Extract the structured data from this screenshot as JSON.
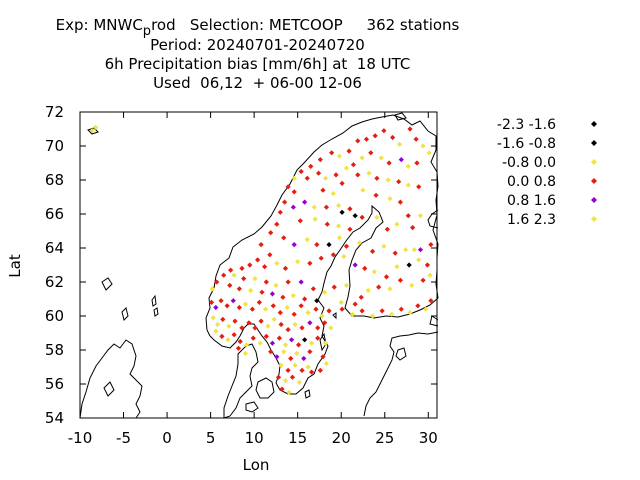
{
  "title": {
    "line1_a": "Exp: MNWC",
    "line1_sub": "p",
    "line1_b": "rod   Selection: METCOOP     362 stations",
    "line2": "Period: 20240701-20240720",
    "line3": "6h Precipitation bias [mm/6h] at  18 UTC",
    "line4": "Used  06,12  + 06-00 12-06"
  },
  "chart_data": {
    "type": "scatter",
    "xlabel": "Lon",
    "ylabel": "Lat",
    "xlim": [
      -10,
      31
    ],
    "ylim": [
      54,
      72
    ],
    "xticks": [
      "-10",
      "-5",
      "0",
      "5",
      "10",
      "15",
      "20",
      "25",
      "30"
    ],
    "yticks": [
      "54",
      "56",
      "58",
      "60",
      "62",
      "64",
      "66",
      "68",
      "70",
      "72"
    ],
    "grid": false,
    "legend_position": "right",
    "classes": [
      {
        "label": "-2.3 -1.6",
        "color": "#000000"
      },
      {
        "label": "-1.6 -0.8",
        "color": "#000000"
      },
      {
        "label": "-0.8 0.0",
        "color": "#f0e442"
      },
      {
        "label": "0.0 0.8",
        "color": "#e51e10"
      },
      {
        "label": "0.8 1.6",
        "color": "#9400d3"
      },
      {
        "label": "1.6 2.3",
        "color": "#f0e442"
      }
    ],
    "points": [
      [
        -8.6,
        70.9,
        5
      ],
      [
        -8.2,
        71.1,
        2
      ],
      [
        21.9,
        70.3,
        3
      ],
      [
        22.9,
        70.4,
        3
      ],
      [
        23.9,
        70.6,
        3
      ],
      [
        24.9,
        70.9,
        3
      ],
      [
        25.9,
        70.5,
        3
      ],
      [
        26.7,
        70.1,
        2
      ],
      [
        27.9,
        71.0,
        3
      ],
      [
        28.6,
        70.4,
        3
      ],
      [
        29.4,
        70.0,
        2
      ],
      [
        30.1,
        69.6,
        2
      ],
      [
        18.9,
        69.6,
        3
      ],
      [
        19.8,
        69.4,
        2
      ],
      [
        20.9,
        69.7,
        3
      ],
      [
        17.6,
        69.2,
        3
      ],
      [
        16.5,
        68.8,
        3
      ],
      [
        15.4,
        68.5,
        3
      ],
      [
        14.6,
        68.1,
        2
      ],
      [
        13.9,
        67.6,
        3
      ],
      [
        16.1,
        68.1,
        3
      ],
      [
        17.4,
        68.4,
        3
      ],
      [
        18.2,
        68.1,
        2
      ],
      [
        19.4,
        68.3,
        3
      ],
      [
        20.6,
        68.7,
        2
      ],
      [
        21.4,
        68.9,
        3
      ],
      [
        22.4,
        69.3,
        2
      ],
      [
        23.4,
        69.6,
        3
      ],
      [
        24.6,
        69.3,
        2
      ],
      [
        25.5,
        69.0,
        3
      ],
      [
        26.9,
        69.2,
        4
      ],
      [
        27.7,
        68.8,
        2
      ],
      [
        28.7,
        69.0,
        3
      ],
      [
        21.9,
        68.3,
        3
      ],
      [
        23.2,
        68.4,
        2
      ],
      [
        24.1,
        68.1,
        3
      ],
      [
        25.4,
        68.0,
        2
      ],
      [
        26.6,
        67.9,
        3
      ],
      [
        27.7,
        67.7,
        2
      ],
      [
        28.9,
        67.6,
        3
      ],
      [
        20.1,
        67.8,
        3
      ],
      [
        19.1,
        67.2,
        2
      ],
      [
        17.9,
        67.4,
        3
      ],
      [
        22.5,
        67.4,
        2
      ],
      [
        24.0,
        67.1,
        3
      ],
      [
        25.6,
        66.9,
        2
      ],
      [
        26.8,
        66.7,
        3
      ],
      [
        14.6,
        67.3,
        3
      ],
      [
        13.5,
        66.7,
        3
      ],
      [
        13.0,
        66.1,
        3
      ],
      [
        14.5,
        66.4,
        4
      ],
      [
        15.8,
        66.7,
        4
      ],
      [
        16.9,
        66.4,
        2
      ],
      [
        18.3,
        66.4,
        3
      ],
      [
        19.7,
        66.5,
        2
      ],
      [
        21.0,
        66.3,
        3
      ],
      [
        20.1,
        66.1,
        1
      ],
      [
        21.6,
        65.9,
        0
      ],
      [
        15.3,
        65.6,
        3
      ],
      [
        17.0,
        65.7,
        2
      ],
      [
        18.4,
        65.4,
        3
      ],
      [
        19.7,
        65.3,
        2
      ],
      [
        21.0,
        65.1,
        3
      ],
      [
        22.4,
        65.8,
        3
      ],
      [
        24.1,
        65.8,
        2
      ],
      [
        25.3,
        65.1,
        3
      ],
      [
        26.4,
        65.4,
        2
      ],
      [
        27.7,
        65.9,
        3
      ],
      [
        29.1,
        65.9,
        2
      ],
      [
        28.2,
        65.2,
        3
      ],
      [
        12.6,
        65.4,
        3
      ],
      [
        11.9,
        64.9,
        3
      ],
      [
        13.4,
        64.6,
        3
      ],
      [
        14.6,
        64.2,
        4
      ],
      [
        16.1,
        64.5,
        2
      ],
      [
        17.2,
        64.2,
        3
      ],
      [
        18.6,
        64.2,
        1
      ],
      [
        19.8,
        64.6,
        2
      ],
      [
        20.6,
        64.1,
        3
      ],
      [
        22.1,
        64.3,
        2
      ],
      [
        23.6,
        63.8,
        3
      ],
      [
        24.9,
        64.1,
        2
      ],
      [
        26.2,
        63.7,
        3
      ],
      [
        27.4,
        63.9,
        2
      ],
      [
        28.4,
        63.9,
        2
      ],
      [
        29.1,
        63.9,
        4
      ],
      [
        30.3,
        64.2,
        3
      ],
      [
        10.8,
        64.2,
        3
      ],
      [
        11.8,
        63.6,
        3
      ],
      [
        10.4,
        63.3,
        3
      ],
      [
        9.5,
        63.0,
        3
      ],
      [
        8.6,
        62.8,
        3
      ],
      [
        7.3,
        62.7,
        3
      ],
      [
        6.5,
        62.4,
        3
      ],
      [
        5.7,
        62.0,
        3
      ],
      [
        5.2,
        61.6,
        2
      ],
      [
        11.2,
        62.9,
        3
      ],
      [
        12.6,
        63.1,
        2
      ],
      [
        13.6,
        62.8,
        3
      ],
      [
        15.0,
        63.2,
        2
      ],
      [
        16.4,
        63.1,
        3
      ],
      [
        17.7,
        63.4,
        3
      ],
      [
        19.1,
        63.6,
        3
      ],
      [
        20.3,
        63.5,
        2
      ],
      [
        21.6,
        63.0,
        4
      ],
      [
        22.7,
        62.8,
        3
      ],
      [
        23.8,
        62.6,
        2
      ],
      [
        25.2,
        62.3,
        3
      ],
      [
        26.4,
        62.9,
        2
      ],
      [
        27.8,
        63.0,
        1
      ],
      [
        28.9,
        63.3,
        2
      ],
      [
        29.9,
        63.0,
        3
      ],
      [
        30.2,
        62.4,
        2
      ],
      [
        29.4,
        62.1,
        3
      ],
      [
        28.1,
        61.8,
        2
      ],
      [
        26.8,
        62.1,
        3
      ],
      [
        25.6,
        61.6,
        2
      ],
      [
        24.3,
        61.7,
        3
      ],
      [
        23.1,
        61.5,
        2
      ],
      [
        22.3,
        61.1,
        3
      ],
      [
        7.7,
        62.4,
        2
      ],
      [
        8.8,
        62.2,
        3
      ],
      [
        10.1,
        62.2,
        2
      ],
      [
        11.4,
        62.0,
        3
      ],
      [
        12.5,
        61.8,
        2
      ],
      [
        13.9,
        62.0,
        3
      ],
      [
        15.4,
        62.0,
        4
      ],
      [
        16.8,
        61.6,
        3
      ],
      [
        18.1,
        61.4,
        2
      ],
      [
        19.2,
        61.7,
        3
      ],
      [
        20.6,
        61.8,
        2
      ],
      [
        7.2,
        61.8,
        3
      ],
      [
        8.3,
        61.6,
        3
      ],
      [
        9.6,
        61.5,
        2
      ],
      [
        10.9,
        61.4,
        3
      ],
      [
        12.1,
        61.3,
        4
      ],
      [
        13.3,
        61.1,
        3
      ],
      [
        14.5,
        61.2,
        2
      ],
      [
        15.8,
        61.0,
        3
      ],
      [
        17.2,
        60.9,
        0
      ],
      [
        5.1,
        60.8,
        3
      ],
      [
        5.6,
        60.5,
        4
      ],
      [
        6.2,
        60.9,
        3
      ],
      [
        6.9,
        60.6,
        3
      ],
      [
        7.6,
        60.9,
        4
      ],
      [
        8.3,
        60.5,
        3
      ],
      [
        9.0,
        60.7,
        2
      ],
      [
        9.8,
        60.4,
        3
      ],
      [
        10.6,
        60.8,
        3
      ],
      [
        11.3,
        60.4,
        2
      ],
      [
        12.2,
        60.6,
        3
      ],
      [
        13.0,
        60.2,
        3
      ],
      [
        13.8,
        60.5,
        2
      ],
      [
        14.6,
        60.1,
        3
      ],
      [
        15.4,
        60.6,
        3
      ],
      [
        16.2,
        60.2,
        2
      ],
      [
        17.1,
        60.4,
        3
      ],
      [
        17.8,
        60.0,
        2
      ],
      [
        18.6,
        60.3,
        3
      ],
      [
        20.1,
        60.4,
        3
      ],
      [
        21.3,
        60.1,
        2
      ],
      [
        22.4,
        60.3,
        3
      ],
      [
        23.6,
        60.0,
        2
      ],
      [
        24.7,
        60.3,
        3
      ],
      [
        25.8,
        60.1,
        2
      ],
      [
        26.9,
        60.4,
        3
      ],
      [
        27.9,
        60.2,
        2
      ],
      [
        28.8,
        60.6,
        3
      ],
      [
        29.7,
        60.4,
        2
      ],
      [
        30.3,
        60.9,
        3
      ],
      [
        20.0,
        60.8,
        2
      ],
      [
        21.6,
        60.7,
        3
      ],
      [
        5.3,
        59.9,
        2
      ],
      [
        5.8,
        59.5,
        2
      ],
      [
        6.4,
        59.8,
        3
      ],
      [
        7.1,
        59.4,
        2
      ],
      [
        7.8,
        59.7,
        3
      ],
      [
        8.6,
        59.3,
        3
      ],
      [
        9.4,
        59.6,
        3
      ],
      [
        10.1,
        59.3,
        3
      ],
      [
        10.8,
        59.7,
        3
      ],
      [
        11.6,
        59.4,
        2
      ],
      [
        12.3,
        59.8,
        2
      ],
      [
        13.1,
        59.5,
        3
      ],
      [
        13.9,
        59.2,
        3
      ],
      [
        14.7,
        59.5,
        2
      ],
      [
        15.5,
        59.3,
        3
      ],
      [
        16.4,
        59.6,
        4
      ],
      [
        17.3,
        59.3,
        3
      ],
      [
        18.1,
        59.6,
        3
      ],
      [
        18.8,
        59.3,
        2
      ],
      [
        5.6,
        59.1,
        2
      ],
      [
        6.3,
        58.8,
        3
      ],
      [
        7.0,
        58.6,
        2
      ],
      [
        7.7,
        58.9,
        3
      ],
      [
        8.4,
        58.5,
        3
      ],
      [
        9.1,
        58.3,
        2
      ],
      [
        9.9,
        58.7,
        3
      ],
      [
        10.7,
        58.4,
        2
      ],
      [
        11.4,
        58.8,
        3
      ],
      [
        12.1,
        58.4,
        4
      ],
      [
        12.9,
        58.7,
        3
      ],
      [
        13.6,
        58.3,
        2
      ],
      [
        14.3,
        58.6,
        4
      ],
      [
        15.1,
        58.3,
        3
      ],
      [
        15.8,
        58.6,
        1
      ],
      [
        16.6,
        58.4,
        2
      ],
      [
        17.3,
        58.7,
        3
      ],
      [
        18.2,
        58.4,
        2
      ],
      [
        11.9,
        57.9,
        3
      ],
      [
        12.6,
        57.6,
        4
      ],
      [
        13.4,
        57.9,
        2
      ],
      [
        14.2,
        57.5,
        3
      ],
      [
        14.9,
        57.8,
        2
      ],
      [
        15.7,
        57.5,
        4
      ],
      [
        16.4,
        57.9,
        3
      ],
      [
        13.1,
        57.1,
        2
      ],
      [
        13.9,
        56.8,
        3
      ],
      [
        14.7,
        57.1,
        2
      ],
      [
        15.5,
        56.8,
        3
      ],
      [
        16.2,
        57.0,
        2
      ],
      [
        12.8,
        56.4,
        3
      ],
      [
        13.6,
        56.2,
        2
      ],
      [
        14.4,
        56.4,
        3
      ],
      [
        15.2,
        56.1,
        2
      ],
      [
        13.2,
        55.7,
        3
      ],
      [
        14.0,
        55.5,
        2
      ],
      [
        16.6,
        56.7,
        3
      ],
      [
        8.2,
        58.1,
        3
      ],
      [
        9.0,
        57.8,
        2
      ],
      [
        17.9,
        57.6,
        3
      ],
      [
        18.3,
        57.2,
        2
      ],
      [
        17.6,
        56.8,
        3
      ]
    ]
  }
}
